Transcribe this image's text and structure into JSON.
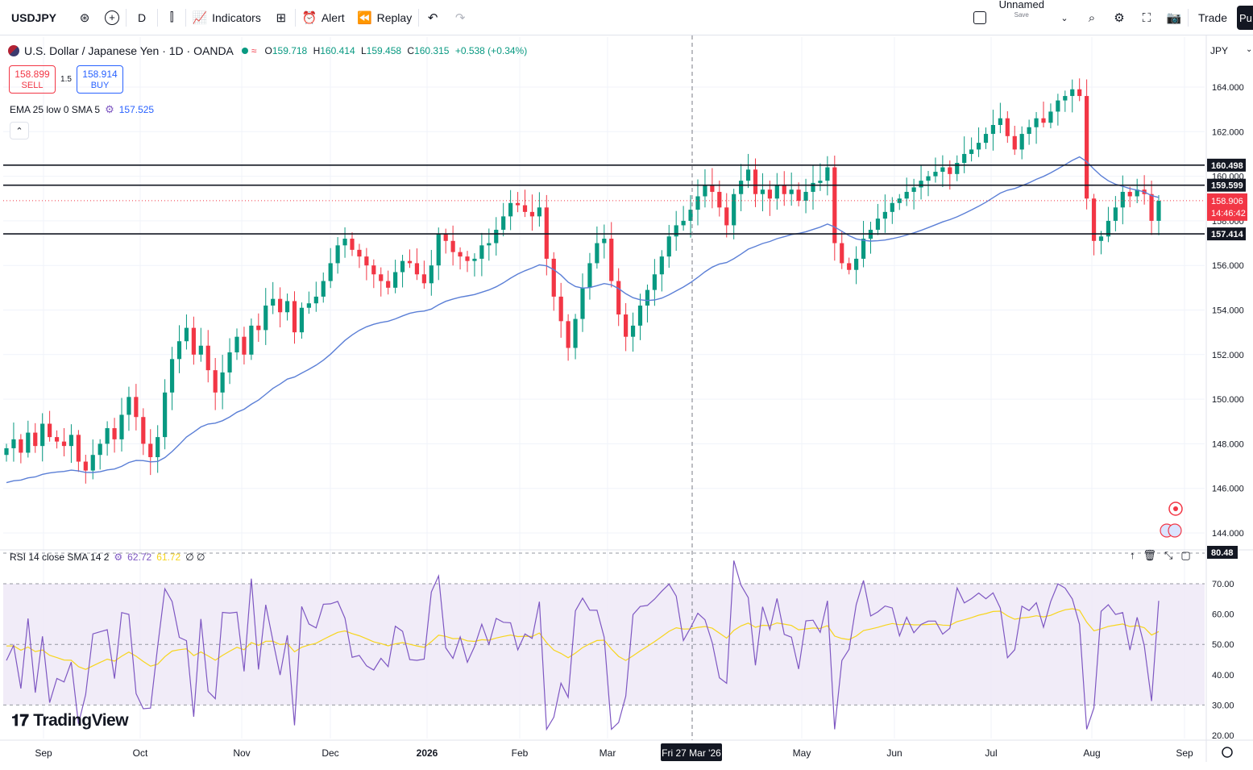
{
  "toolbar": {
    "symbol": "USDJPY",
    "interval": "D",
    "indicators_label": "Indicators",
    "alert_label": "Alert",
    "replay_label": "Replay",
    "layout_name": "Unnamed",
    "save_label": "Save",
    "trade_label": "Trade",
    "publish_label": "Pu"
  },
  "legend": {
    "title": "U.S. Dollar / Japanese Yen · 1D · OANDA",
    "o_label": "O",
    "o": "159.718",
    "h_label": "H",
    "h": "160.414",
    "l_label": "L",
    "l": "159.458",
    "c_label": "C",
    "c": "160.315",
    "change": "+0.538 (+0.34%)"
  },
  "trade": {
    "sell_price": "158.899",
    "sell_label": "SELL",
    "spread": "1.5",
    "buy_price": "158.914",
    "buy_label": "BUY"
  },
  "ema": {
    "label": "EMA 25 low 0 SMA 5",
    "value": "157.525"
  },
  "rsi": {
    "label": "RSI 14 close SMA 14 2",
    "value": "62.72",
    "sma_value": "61.72",
    "extra": "∅ ∅"
  },
  "price_axis": {
    "currency": "JPY",
    "ticks": [
      "164.000",
      "162.000",
      "160.000",
      "158.000",
      "156.000",
      "154.000",
      "152.000",
      "150.000",
      "148.000",
      "146.000",
      "144.000"
    ],
    "levels": [
      "160.498",
      "159.599",
      "157.414"
    ],
    "current_price": "158.906",
    "countdown": "14:46:42"
  },
  "rsi_axis": {
    "ticks": [
      "80.48",
      "70.00",
      "60.00",
      "50.00",
      "40.00",
      "30.00",
      "20.00"
    ]
  },
  "time_axis": {
    "labels": [
      "Sep",
      "Oct",
      "Nov",
      "Dec",
      "2026",
      "Feb",
      "Mar",
      "May",
      "Jun",
      "Jul",
      "Aug",
      "Sep"
    ],
    "crosshair_label": "Fri 27 Mar '26"
  },
  "brand": {
    "logo_text": "TradingView"
  },
  "colors": {
    "up": "#089981",
    "down": "#f23645",
    "ema": "#5b7fd6",
    "rsi": "#7e57c2",
    "rsi_sma": "#f7d51d",
    "rsi_band": "#ede7f6"
  },
  "chart_data": {
    "type": "candlestick",
    "price_range": [
      143.5,
      165
    ],
    "close_path": [
      147.8,
      148.2,
      147.6,
      148.5,
      147.9,
      148.9,
      148.3,
      148.1,
      147.9,
      148.4,
      147.2,
      146.8,
      147.5,
      148.0,
      148.7,
      148.2,
      149.3,
      150.1,
      149.2,
      148.0,
      147.4,
      148.3,
      150.3,
      151.8,
      152.6,
      153.2,
      152.0,
      152.4,
      151.3,
      150.3,
      151.2,
      152.1,
      152.8,
      152.0,
      153.3,
      153.1,
      154.2,
      154.5,
      153.9,
      154.4,
      153.0,
      154.1,
      154.3,
      154.6,
      155.3,
      156.1,
      156.9,
      157.2,
      156.7,
      156.4,
      156.0,
      155.6,
      155.3,
      155.0,
      155.7,
      156.2,
      156.1,
      155.6,
      155.2,
      156.0,
      157.4,
      157.1,
      156.6,
      156.4,
      156.2,
      156.3,
      156.9,
      157.0,
      157.6,
      158.2,
      158.8,
      158.7,
      158.4,
      158.2,
      158.6,
      156.3,
      154.6,
      153.5,
      152.3,
      153.6,
      155.0,
      156.1,
      157.0,
      157.2,
      155.3,
      153.8,
      152.8,
      153.3,
      154.2,
      154.9,
      155.6,
      156.4,
      157.3,
      157.8,
      158.0,
      158.5,
      159.1,
      159.6,
      159.3,
      158.6,
      157.8,
      159.2,
      159.8,
      160.3,
      159.2,
      159.4,
      159.0,
      159.6,
      159.2,
      159.4,
      158.9,
      159.3,
      159.7,
      159.8,
      160.4,
      157.0,
      156.1,
      155.8,
      156.3,
      157.2,
      157.6,
      158.1,
      158.4,
      158.8,
      159.0,
      159.3,
      159.5,
      159.8,
      160.0,
      160.2,
      160.4,
      160.1,
      160.6,
      161.0,
      161.2,
      161.5,
      161.9,
      162.3,
      162.6,
      161.8,
      161.2,
      161.9,
      162.2,
      162.6,
      162.4,
      162.9,
      163.4,
      163.6,
      163.9,
      163.6,
      159.0,
      157.1,
      157.3,
      158.0,
      158.6,
      159.3,
      159.1,
      159.4,
      159.2,
      158.0,
      158.9
    ],
    "support_resistance": [
      160.498,
      159.599,
      157.414
    ],
    "rsi_range": [
      20,
      80.48
    ]
  }
}
